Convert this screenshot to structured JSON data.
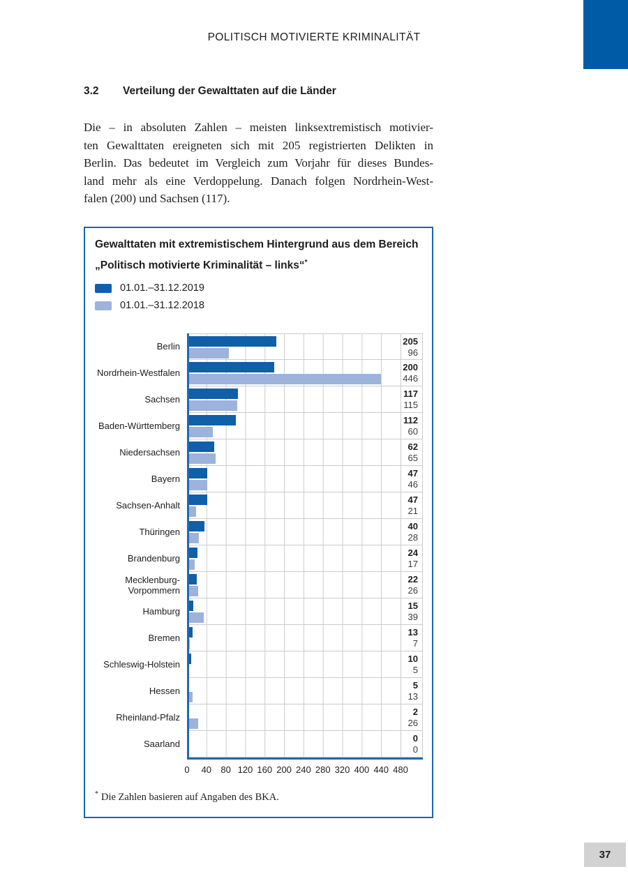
{
  "page": {
    "header_title": "POLITISCH MOTIVIERTE KRIMINALITÄT",
    "page_number": "37"
  },
  "section": {
    "number": "3.2",
    "title": "Verteilung der Gewalttaten auf die Länder"
  },
  "paragraph_lines": [
    "Die – in absoluten Zahlen – meisten linksextremistisch motivier-",
    "ten Gewalttaten ereigneten sich mit 205 registrierten Delikten in",
    "Berlin. Das bedeutet im Vergleich zum Vorjahr für dieses Bundes-",
    "land mehr als eine Verdoppelung. Danach folgen Nordrhein-West-",
    "falen (200) und Sachsen (117)."
  ],
  "chart_box": {
    "title_line1": "Gewalttaten mit extremistischem Hintergrund aus dem Bereich",
    "title_line2": "„Politisch motivierte Kriminalität – links“",
    "title_footnote_marker": "*",
    "legend": [
      {
        "label": "01.01.–31.12.2019",
        "color": "#0f5fa9"
      },
      {
        "label": "01.01.–31.12.2018",
        "color": "#9db3db"
      }
    ],
    "footnote_marker": "*",
    "footnote": "Die Zahlen basieren auf Angaben des BKA."
  },
  "chart_data": {
    "type": "bar",
    "orientation": "horizontal",
    "title": "Gewalttaten mit extremistischem Hintergrund aus dem Bereich „Politisch motivierte Kriminalität – links“",
    "categories": [
      "Berlin",
      "Nordrhein-Westfalen",
      "Sachsen",
      "Baden-Württemberg",
      "Niedersachsen",
      "Bayern",
      "Sachsen-Anhalt",
      "Thüringen",
      "Brandenburg",
      "Mecklenburg-\nVorpommern",
      "Hamburg",
      "Bremen",
      "Schleswig-Holstein",
      "Hessen",
      "Rheinland-Pfalz",
      "Saarland"
    ],
    "series": [
      {
        "name": "01.01.–31.12.2019",
        "color": "#0f5fa9",
        "values": [
          205,
          200,
          117,
          112,
          62,
          47,
          47,
          40,
          24,
          22,
          15,
          13,
          10,
          5,
          2,
          0
        ]
      },
      {
        "name": "01.01.–31.12.2018",
        "color": "#9db3db",
        "values": [
          96,
          446,
          115,
          60,
          65,
          46,
          21,
          28,
          17,
          26,
          39,
          7,
          5,
          13,
          26,
          0
        ]
      }
    ],
    "x_tick_labels": [
      "0",
      "40",
      "80",
      "120",
      "160",
      "200",
      "240",
      "280",
      "320",
      "400",
      "440",
      "480"
    ],
    "xlim": [
      0,
      491
    ],
    "grid": true,
    "legend_position": "top-left",
    "value_labels_shown": true
  }
}
